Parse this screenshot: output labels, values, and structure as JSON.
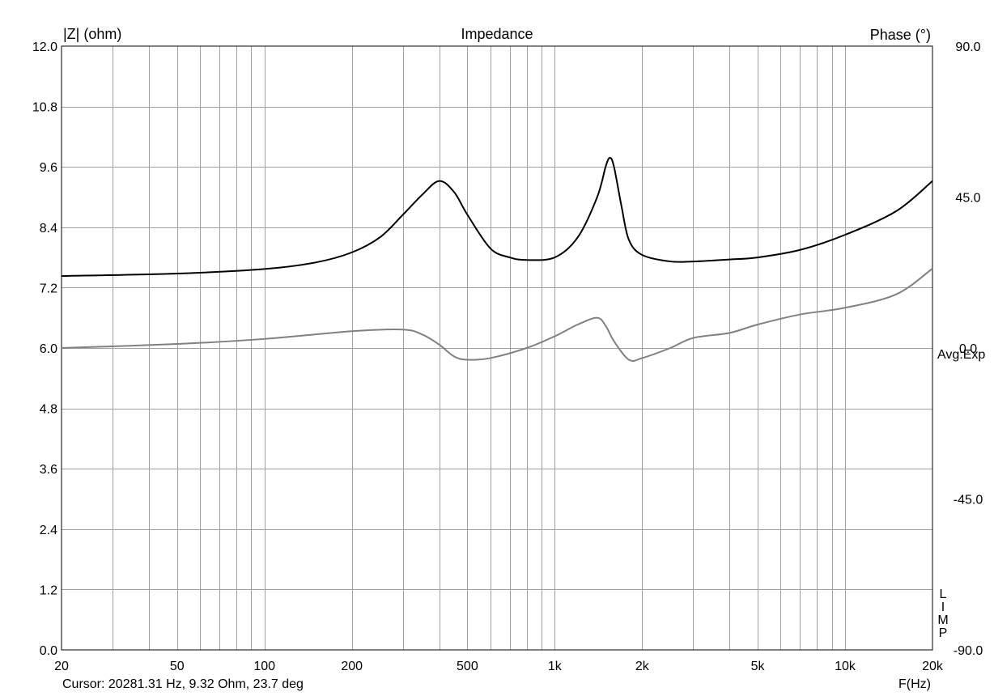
{
  "chart_data": {
    "type": "line",
    "title": "Impedance",
    "ylabel_left": "|Z| (ohm)",
    "ylabel_right": "Phase (°)",
    "xlabel": "F(Hz)",
    "x_scale": "log",
    "xlim": [
      20,
      20000
    ],
    "ylim_left": [
      0,
      12
    ],
    "ylim_right": [
      -90,
      90
    ],
    "grid": true,
    "x_ticks": [
      {
        "value": 20,
        "label": "20"
      },
      {
        "value": 50,
        "label": "50"
      },
      {
        "value": 100,
        "label": "100"
      },
      {
        "value": 200,
        "label": "200"
      },
      {
        "value": 500,
        "label": "500"
      },
      {
        "value": 1000,
        "label": "1k"
      },
      {
        "value": 2000,
        "label": "2k"
      },
      {
        "value": 5000,
        "label": "5k"
      },
      {
        "value": 10000,
        "label": "10k"
      },
      {
        "value": 20000,
        "label": "20k"
      }
    ],
    "y_ticks_left": [
      "0.0",
      "1.2",
      "2.4",
      "3.6",
      "4.8",
      "6.0",
      "7.2",
      "8.4",
      "9.6",
      "10.8",
      "12.0"
    ],
    "y_ticks_right": [
      "-90.0",
      "-45.0",
      "0.0",
      "45.0",
      "90.0"
    ],
    "series": [
      {
        "axis": "left",
        "color": "#000000",
        "x": [
          20,
          50,
          100,
          150,
          200,
          250,
          300,
          350,
          400,
          450,
          500,
          600,
          700,
          800,
          1000,
          1200,
          1400,
          1500,
          1550,
          1600,
          1700,
          1800,
          2000,
          2500,
          3000,
          3500,
          4000,
          5000,
          7000,
          10000,
          15000,
          20000
        ],
        "values": [
          7.43,
          7.48,
          7.57,
          7.7,
          7.9,
          8.2,
          8.65,
          9.05,
          9.32,
          9.1,
          8.65,
          7.98,
          7.8,
          7.75,
          7.8,
          8.2,
          9.0,
          9.62,
          9.78,
          9.6,
          8.8,
          8.15,
          7.85,
          7.72,
          7.72,
          7.74,
          7.76,
          7.8,
          7.95,
          8.25,
          8.72,
          9.32
        ]
      },
      {
        "axis": "right",
        "color": "#808080",
        "x": [
          20,
          50,
          100,
          200,
          300,
          350,
          400,
          450,
          500,
          600,
          800,
          1000,
          1200,
          1400,
          1500,
          1600,
          1800,
          2000,
          2500,
          3000,
          4000,
          5000,
          7000,
          10000,
          15000,
          20000
        ],
        "values": [
          0.0,
          1.2,
          2.7,
          5.0,
          5.5,
          4.0,
          1.0,
          -2.5,
          -3.5,
          -3.0,
          0.0,
          3.5,
          7.0,
          9.0,
          6.5,
          2.0,
          -3.5,
          -3.0,
          0.0,
          3.0,
          4.5,
          7.0,
          10.0,
          12.0,
          16.0,
          23.7
        ]
      }
    ]
  },
  "cursor_readout": "Cursor: 20281.31 Hz, 9.32 Ohm, 23.7 deg",
  "avg_label": "Avg:Exp",
  "side_letters": [
    "L",
    "I",
    "M",
    "P"
  ]
}
